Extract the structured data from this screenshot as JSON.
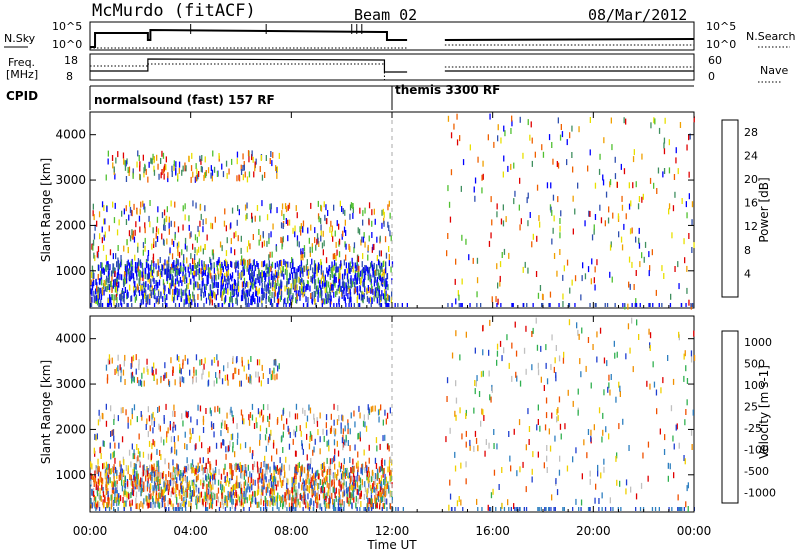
{
  "header": {
    "station": "McMurdo (fitACF)",
    "beam": "Beam 02",
    "date": "08/Mar/2012"
  },
  "top_panels": {
    "nsky_label": "N.Sky",
    "nsky_ticks": [
      "10^5",
      "10^0"
    ],
    "nsearch_label": "N.Search",
    "nsearch_ticks": [
      "10^5",
      "10^0"
    ],
    "freq_label_line1": "Freq.",
    "freq_label_line2": "[MHz]",
    "freq_ticks": [
      "18",
      "8"
    ],
    "nave_label": "Nave",
    "nave_ticks": [
      "60",
      "0"
    ],
    "cpid_label": "CPID",
    "cpid_segments": [
      {
        "label": "normalsound (fast) 157 RF",
        "start_hour": 0.0,
        "end_hour": 12.0
      },
      {
        "label": "themis 3300 RF",
        "start_hour": 12.0,
        "end_hour": 24.0
      }
    ]
  },
  "chart_data": [
    {
      "type": "heatmap",
      "title": "",
      "xlabel": "Time UT",
      "ylabel": "Slant Range [km]",
      "xlim": [
        0,
        24
      ],
      "ylim": [
        180,
        4500
      ],
      "x_tick_labels": [
        "00:00",
        "04:00",
        "08:00",
        "12:00",
        "16:00",
        "20:00",
        "00:00"
      ],
      "y_tick_labels": [
        "1000",
        "2000",
        "3000",
        "4000"
      ],
      "colorbar": {
        "label": "Power [dB]",
        "ticks": [
          "4",
          "8",
          "12",
          "16",
          "20",
          "24",
          "28"
        ],
        "range": [
          0,
          30
        ],
        "colors": [
          "#0000ff",
          "#2f4fb0",
          "#3f8f5f",
          "#50c030",
          "#e8e000",
          "#f0a000",
          "#f06000",
          "#e00000"
        ]
      },
      "data_gaps_hours": [
        [
          12.6,
          14.1
        ]
      ],
      "echo_regions": [
        {
          "name": "near-range band",
          "t_start": 0.0,
          "t_end": 12.0,
          "range_km": [
            300,
            1200
          ],
          "density": "high"
        },
        {
          "name": "mid-range scatter",
          "t_start": 0.0,
          "t_end": 12.0,
          "range_km": [
            1200,
            2500
          ],
          "density": "medium"
        },
        {
          "name": "far-range band",
          "t_start": 0.5,
          "t_end": 7.5,
          "range_km": [
            3000,
            3600
          ],
          "density": "low"
        },
        {
          "name": "sparse scatter",
          "t_start": 14.1,
          "t_end": 24.0,
          "range_km": [
            200,
            4400
          ],
          "density": "sparse"
        }
      ]
    },
    {
      "type": "heatmap",
      "title": "",
      "xlabel": "Time UT",
      "ylabel": "Slant Range [km]",
      "xlim": [
        0,
        24
      ],
      "ylim": [
        180,
        4500
      ],
      "x_tick_labels": [
        "00:00",
        "04:00",
        "08:00",
        "12:00",
        "16:00",
        "20:00",
        "00:00"
      ],
      "y_tick_labels": [
        "1000",
        "2000",
        "3000",
        "4000"
      ],
      "colorbar": {
        "label": "Velocity [m s-1]",
        "ticks": [
          "1000",
          "500",
          "100",
          "25",
          "-25",
          "-100",
          "-500",
          "-1000"
        ],
        "colors": [
          "#1f3fd0",
          "#2e7fc0",
          "#30b050",
          "#c0c0c0",
          "#f0d000",
          "#f09000",
          "#f05000",
          "#e00000"
        ]
      },
      "data_gaps_hours": [
        [
          12.6,
          14.1
        ]
      ],
      "echo_regions": [
        {
          "name": "near-range band",
          "t_start": 0.0,
          "t_end": 12.0,
          "range_km": [
            300,
            1200
          ],
          "density": "high"
        },
        {
          "name": "mid-range scatter",
          "t_start": 0.0,
          "t_end": 12.0,
          "range_km": [
            1200,
            2500
          ],
          "density": "medium"
        },
        {
          "name": "far-range band",
          "t_start": 0.5,
          "t_end": 7.5,
          "range_km": [
            3000,
            3600
          ],
          "density": "low"
        },
        {
          "name": "sparse scatter",
          "t_start": 14.1,
          "t_end": 24.0,
          "range_km": [
            200,
            4400
          ],
          "density": "sparse"
        }
      ]
    }
  ]
}
